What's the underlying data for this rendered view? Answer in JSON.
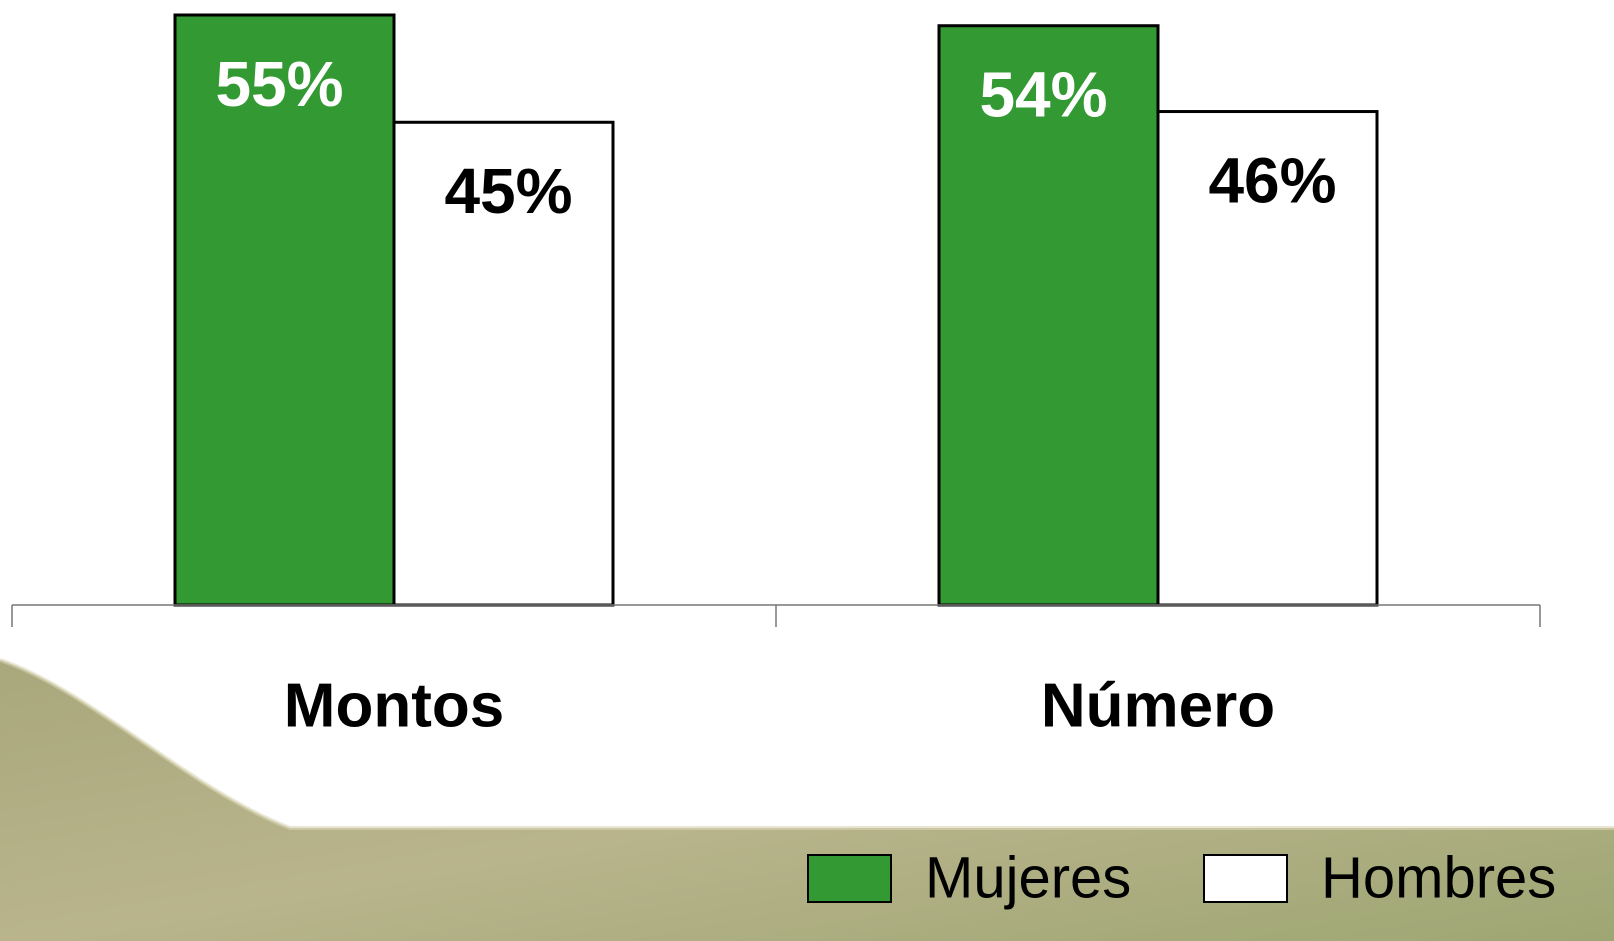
{
  "chart_data": {
    "type": "bar",
    "categories": [
      "Montos",
      "Número"
    ],
    "series": [
      {
        "name": "Mujeres",
        "color": "#339933",
        "values": [
          55,
          54
        ],
        "value_labels": [
          "55%",
          "54%"
        ]
      },
      {
        "name": "Hombres",
        "color": "#ffffff",
        "values": [
          45,
          46
        ],
        "value_labels": [
          "45%",
          "46%"
        ]
      }
    ],
    "legend": "bottom"
  }
}
